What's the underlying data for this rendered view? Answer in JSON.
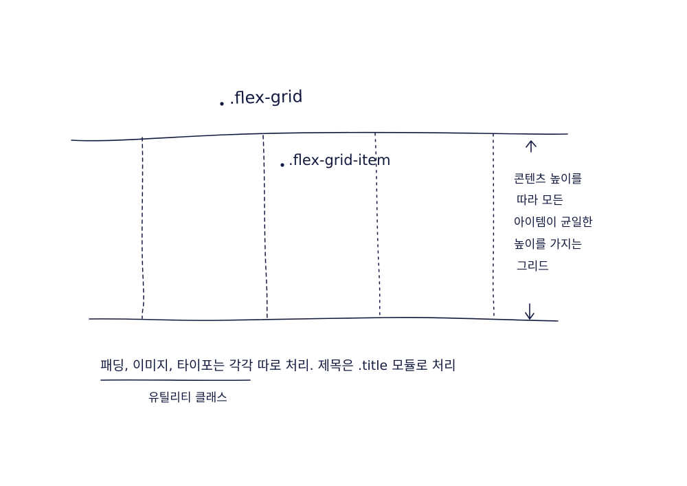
{
  "diagram": {
    "container_label": ".flex-grid",
    "item_label": ".flex-grid-item",
    "side_note_lines": [
      "콘텐츠 높이를",
      "따라 모든",
      "아이템이 균일한",
      "높이를 가지는",
      "그리드"
    ],
    "bottom_note": "패딩, 이미지, 타이포는 각각 따로 처리. 제목은 .title 모듈로 처리",
    "underline_note": "유틸리티 클래스",
    "ink_color": "#12193f"
  }
}
